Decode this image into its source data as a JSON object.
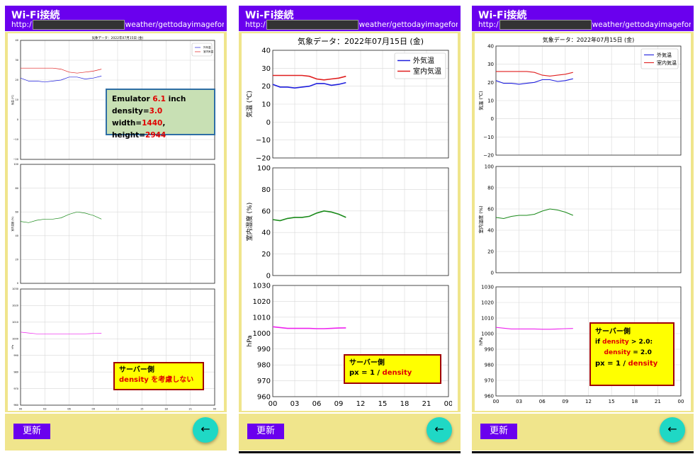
{
  "phones": [
    {
      "title": "Wi-Fi接続",
      "url_prefix": "http:/",
      "url_suffix": "weather/gettodayimagefor...",
      "update_label": "更新",
      "note": {
        "lines": [
          [
            "サーバー側"
          ],
          [
            "",
            "density を考慮しない"
          ]
        ]
      },
      "extra_note": {
        "lines": [
          [
            "Emulator ",
            "6.1",
            " inch"
          ],
          [
            "density=",
            "3.0"
          ],
          [
            "width=",
            "1440",
            ", height=",
            "2944"
          ]
        ]
      }
    },
    {
      "title": "Wi-Fi接続",
      "url_prefix": "http:/",
      "url_suffix": "weather/gettodayimagefor...",
      "update_label": "更新",
      "note": {
        "lines": [
          [
            "サーバー側"
          ],
          [
            "px = 1 / ",
            "density"
          ]
        ]
      }
    },
    {
      "title": "Wi-Fi接続",
      "url_prefix": "http:/",
      "url_suffix": "weather/gettodayimagefor...",
      "update_label": "更新",
      "note": {
        "lines": [
          [
            "サーバー側"
          ],
          [
            "if ",
            "density",
            " > 2.0:"
          ],
          [
            "    ",
            "density",
            " = 2.0"
          ],
          [
            "px = 1 / ",
            "density"
          ]
        ]
      }
    }
  ],
  "chart_data": {
    "type": "line",
    "title": "気象データ：2022年07月15日 (金)",
    "x": [
      "00:00",
      "01:00",
      "02:00",
      "03:00",
      "04:00",
      "05:00",
      "06:00",
      "07:00",
      "08:00",
      "09:00",
      "10:00"
    ],
    "xticks": [
      "00",
      "03",
      "06",
      "09",
      "12",
      "15",
      "18",
      "21",
      "00"
    ],
    "colors": {
      "outdoor": "#1f1fdd",
      "indoor": "#e01f1f",
      "humidity": "#1a8a1a",
      "pressure": "#ee22ee"
    },
    "panels": [
      {
        "ylabel": "気温 (℃)",
        "ylim": [
          -20,
          40
        ],
        "yticks": [
          "40",
          "30",
          "20",
          "10",
          "0",
          "−10",
          "−20"
        ],
        "legend": "top-right",
        "series": [
          {
            "name": "外気温",
            "values": [
              21,
              19.5,
              19.5,
              19,
              19.5,
              20,
              21.5,
              21.5,
              20.5,
              21,
              22
            ]
          },
          {
            "name": "室内気温",
            "values": [
              26,
              26,
              26,
              26,
              26,
              25.5,
              24,
              23.5,
              24,
              24.5,
              25.5
            ]
          }
        ]
      },
      {
        "ylabel": "室内湿度 (%)",
        "ylim": [
          0,
          100
        ],
        "yticks": [
          "100",
          "80",
          "60",
          "40",
          "20",
          "0"
        ],
        "series": [
          {
            "values": [
              52,
              51,
              53,
              54,
              54,
              55,
              58,
              60,
              59,
              57,
              54
            ]
          }
        ]
      },
      {
        "ylabel": "hPa",
        "ylim": [
          960,
          1030
        ],
        "yticks": [
          "1030",
          "1020",
          "1010",
          "1000",
          "990",
          "980",
          "970",
          "960"
        ],
        "series": [
          {
            "values": [
              1004,
              1003.5,
              1003,
              1003,
              1003,
              1003,
              1002.8,
              1002.8,
              1003,
              1003.2,
              1003.3
            ]
          }
        ]
      }
    ]
  }
}
